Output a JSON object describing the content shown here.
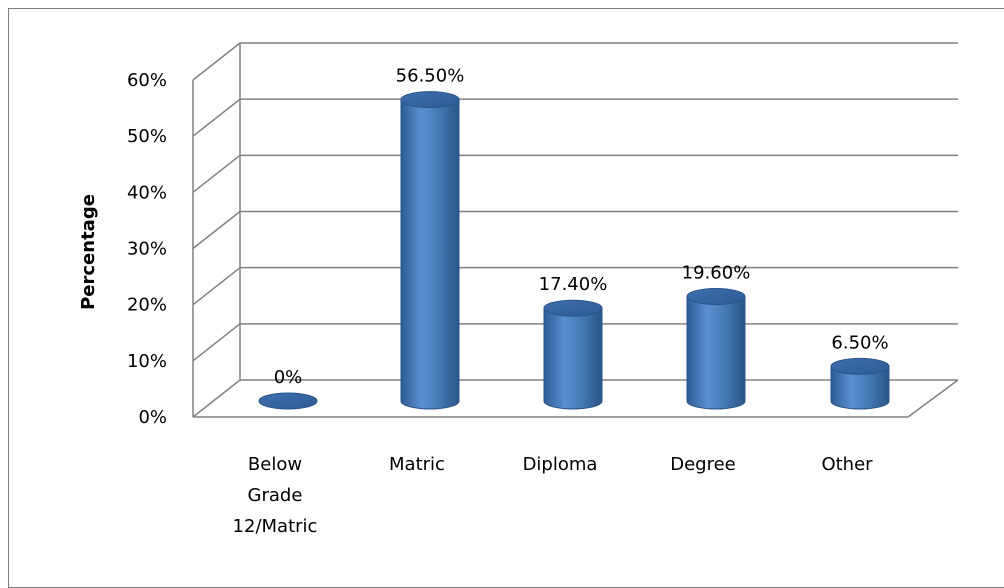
{
  "chart_data": {
    "type": "bar",
    "title": "",
    "xlabel": "",
    "ylabel": "Percentage",
    "categories": [
      "Below Grade 12/Matric",
      "Matric",
      "Diploma",
      "Degree",
      "Other"
    ],
    "category_label_lines": [
      [
        "Below",
        "Grade",
        "12/Matric"
      ],
      [
        "Matric"
      ],
      [
        "Diploma"
      ],
      [
        "Degree"
      ],
      [
        "Other"
      ]
    ],
    "values": [
      0,
      56.5,
      17.4,
      19.6,
      6.5
    ],
    "data_labels": [
      "0%",
      "56.50%",
      "17.40%",
      "19.60%",
      "6.50%"
    ],
    "y_ticks": [
      0,
      10,
      20,
      30,
      40,
      50,
      60
    ],
    "y_tick_labels": [
      "0%",
      "10%",
      "20%",
      "30%",
      "40%",
      "50%",
      "60%"
    ],
    "ylim": [
      0,
      60
    ],
    "grid": true,
    "legend": "none",
    "bar_style": "3d-cylinder",
    "colors": {
      "bar": "#4a7ebb",
      "bar_dark": "#2c5a94",
      "bar_light": "#8fb4e3",
      "grid": "#808080"
    }
  }
}
